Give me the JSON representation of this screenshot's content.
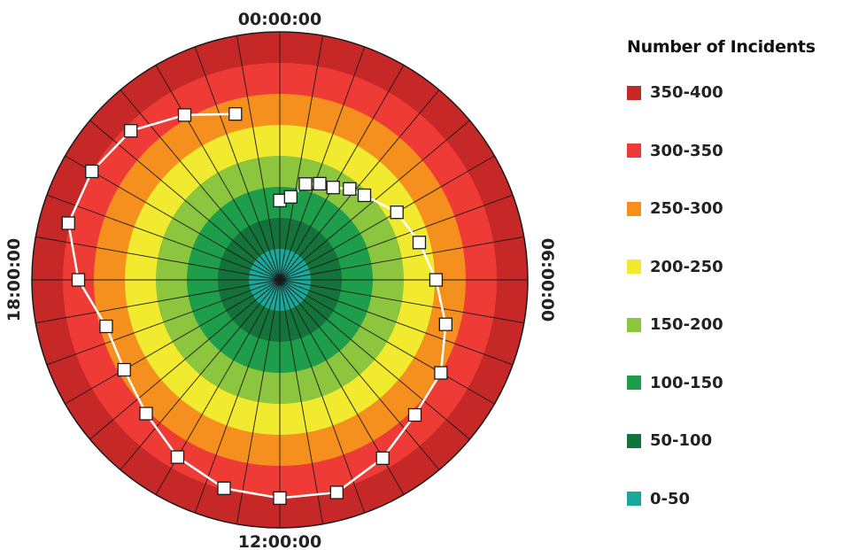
{
  "chart_data": {
    "type": "radial-heatmap-line",
    "time_labels": [
      "00:00:00",
      "06:00:00",
      "12:00:00",
      "18:00:00"
    ],
    "legend": {
      "title": "Number of Incidents",
      "items": [
        {
          "label": "350-400",
          "color": "#c62828"
        },
        {
          "label": "300-350",
          "color": "#ef3b35"
        },
        {
          "label": "250-300",
          "color": "#f5901e"
        },
        {
          "label": "200-250",
          "color": "#f2ea2e"
        },
        {
          "label": "150-200",
          "color": "#8cc63f"
        },
        {
          "label": "100-150",
          "color": "#1e9e4a"
        },
        {
          "label": "50-100",
          "color": "#13733a"
        },
        {
          "label": "0-50",
          "color": "#1aa89b"
        }
      ]
    },
    "rlim": [
      0,
      400
    ],
    "sectors": 36,
    "series": [
      {
        "hours": [
          0,
          0.5,
          1,
          1.5,
          2,
          2.5,
          3,
          4,
          5,
          6,
          7,
          8,
          9,
          10,
          11,
          12,
          13,
          14,
          15,
          16,
          17,
          18,
          19,
          20,
          21,
          22,
          23
        ],
        "values": [
          128,
          135,
          160,
          168,
          172,
          185,
          193,
          218,
          233,
          252,
          277,
          300,
          308,
          332,
          355,
          352,
          348,
          330,
          305,
          290,
          290,
          325,
          353,
          350,
          340,
          307,
          277
        ],
        "color": "#ffffff"
      }
    ]
  }
}
